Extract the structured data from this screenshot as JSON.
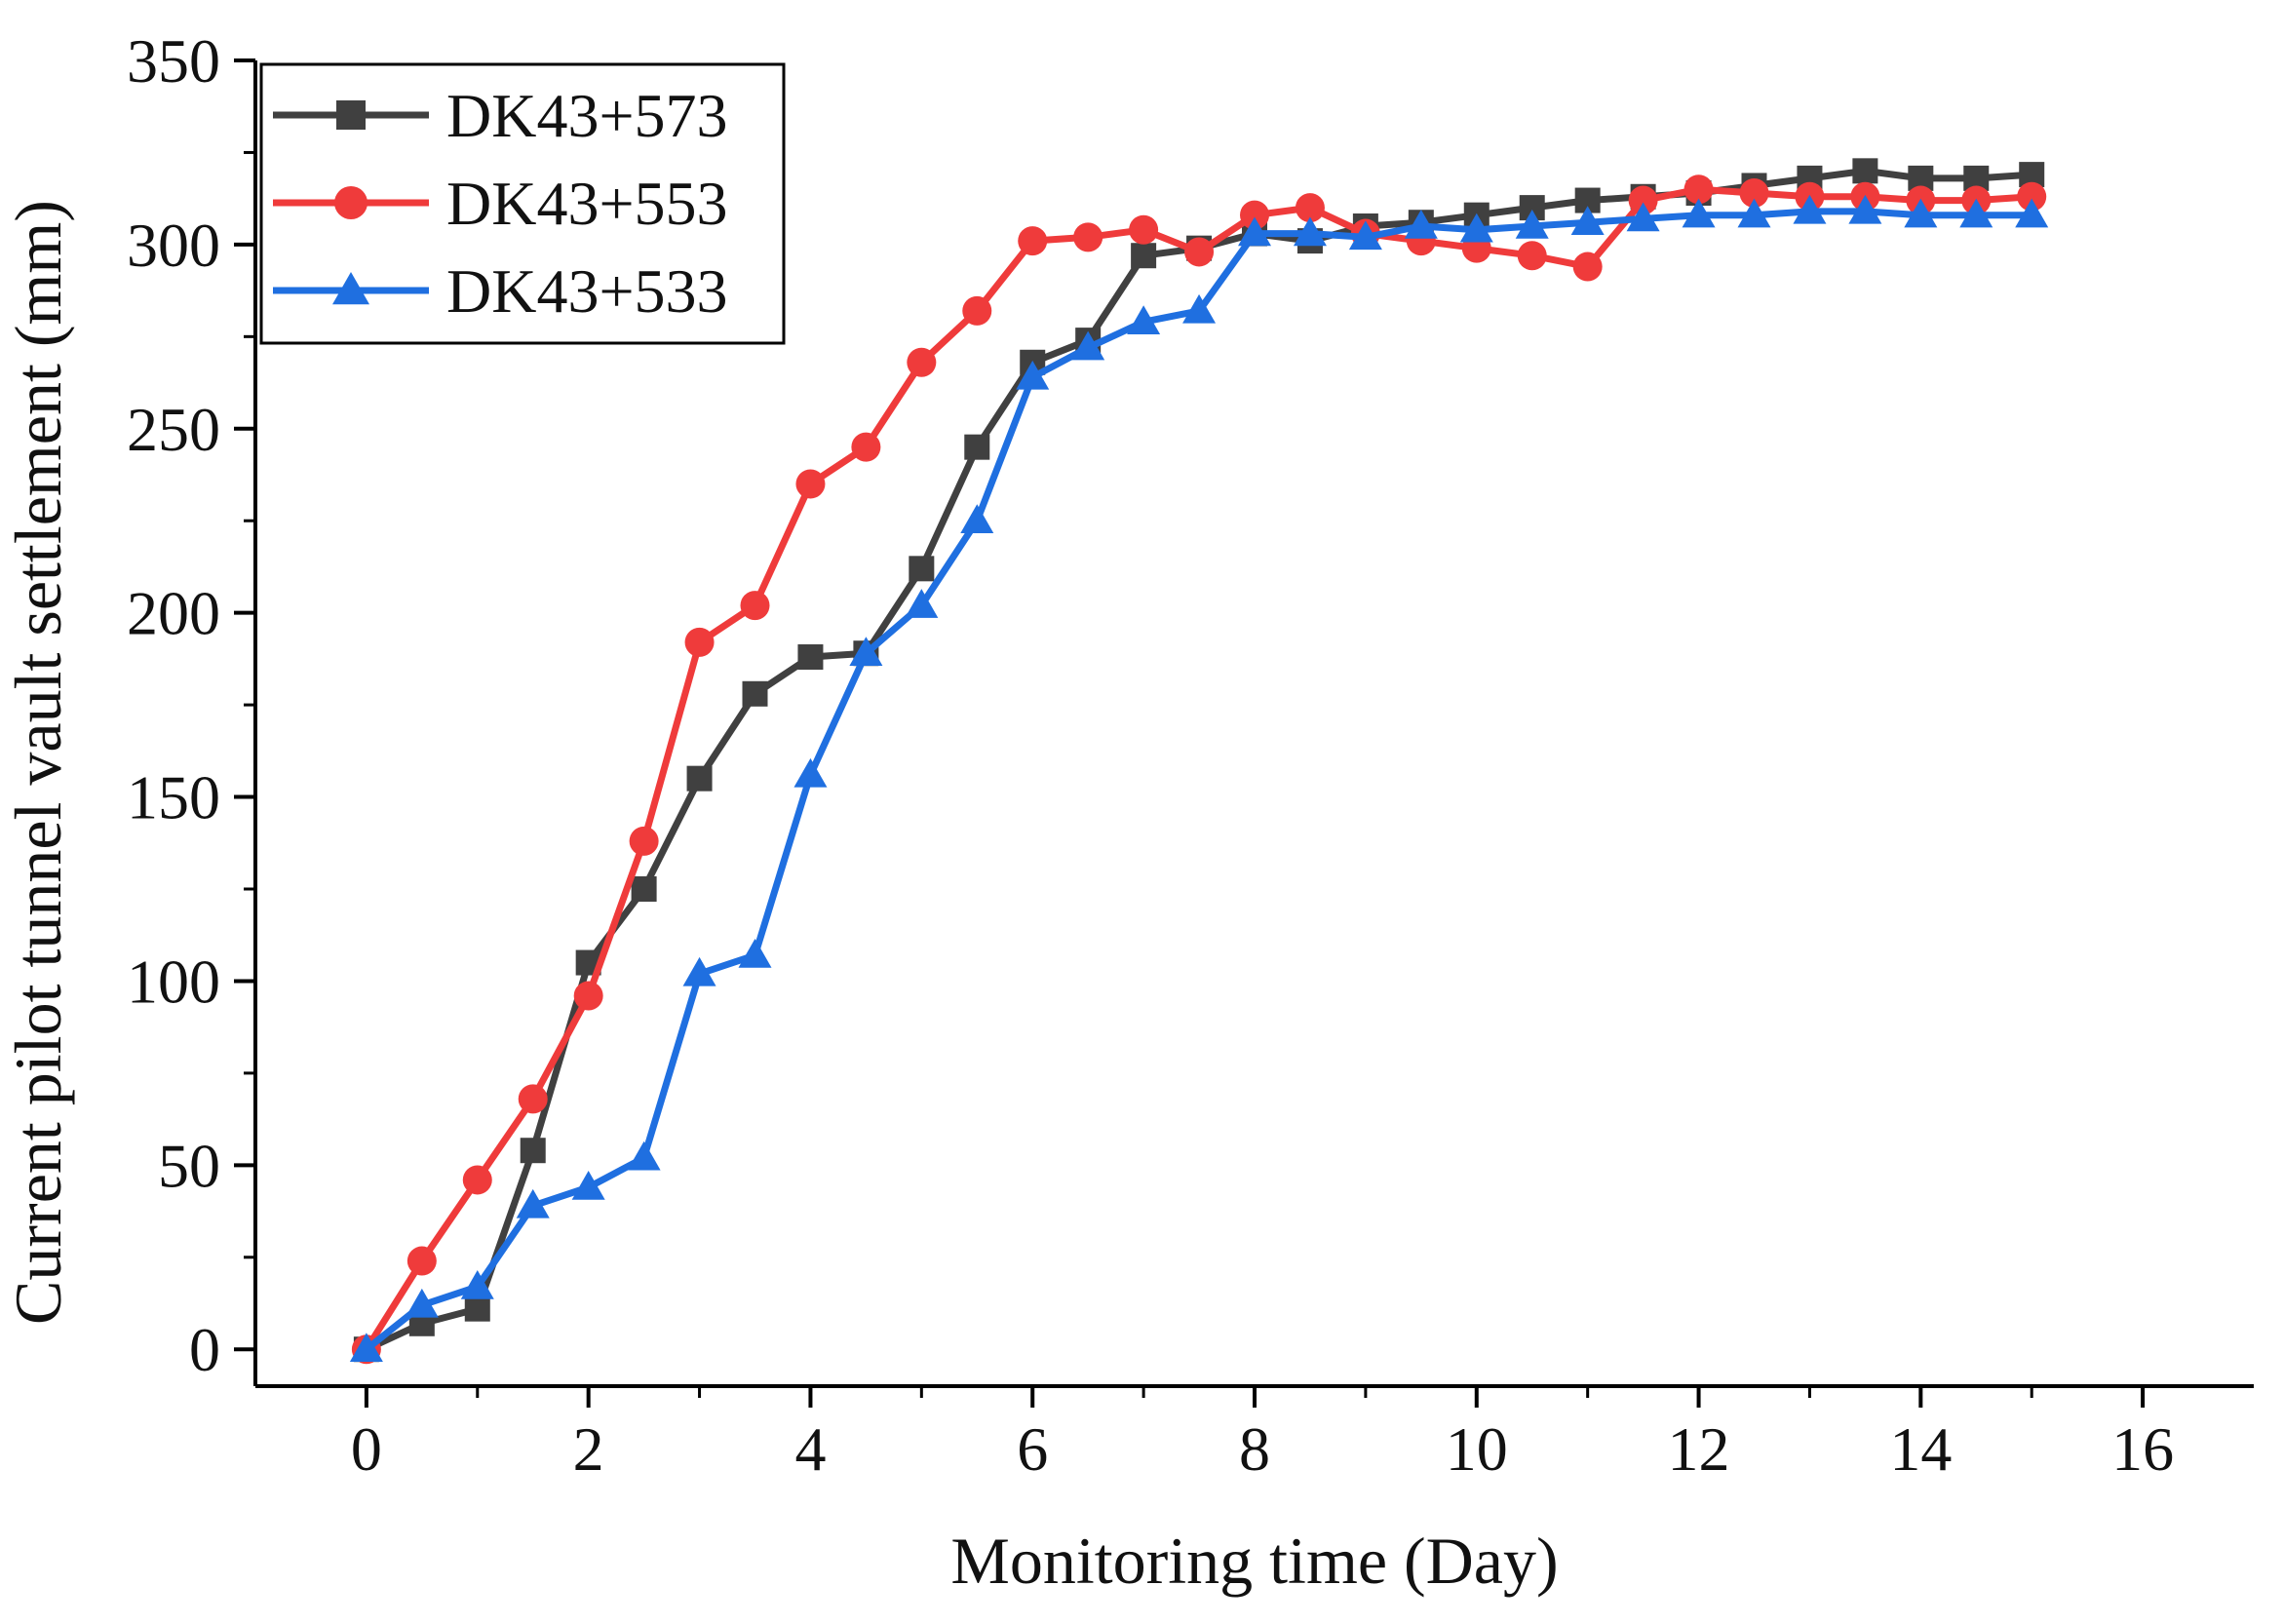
{
  "chart_data": {
    "type": "line",
    "title": "",
    "xlabel": "Monitoring time (Day)",
    "ylabel": "Current pilot tunnel vault settlement (mm)",
    "xlim": [
      -1,
      17
    ],
    "ylim": [
      -10,
      350
    ],
    "xticks": [
      0,
      2,
      4,
      6,
      8,
      10,
      12,
      14,
      16
    ],
    "yticks": [
      0,
      50,
      100,
      150,
      200,
      250,
      300,
      350
    ],
    "grid": false,
    "legend_position": "top-left",
    "x": [
      0,
      0.5,
      1,
      1.5,
      2,
      2.5,
      3,
      3.5,
      4,
      4.5,
      5,
      5.5,
      6,
      6.5,
      7,
      7.5,
      8,
      8.5,
      9,
      9.5,
      10,
      10.5,
      11,
      11.5,
      12,
      12.5,
      13,
      13.5,
      14,
      14.5,
      15
    ],
    "series": [
      {
        "name": "DK43+573",
        "color": "#404040",
        "marker": "square",
        "values": [
          0,
          7,
          11,
          54,
          105,
          125,
          155,
          178,
          188,
          189,
          212,
          245,
          268,
          274,
          297,
          299,
          303,
          301,
          305,
          306,
          308,
          310,
          312,
          313,
          314,
          316,
          318,
          320,
          318,
          318,
          319
        ]
      },
      {
        "name": "DK43+553",
        "color": "#ef3b3b",
        "marker": "circle",
        "values": [
          0,
          24,
          46,
          68,
          96,
          138,
          192,
          202,
          235,
          245,
          268,
          282,
          301,
          302,
          304,
          298,
          308,
          310,
          303,
          301,
          299,
          297,
          294,
          312,
          315,
          314,
          313,
          313,
          312,
          312,
          313
        ]
      },
      {
        "name": "DK43+533",
        "color": "#1f6fe0",
        "marker": "triangle",
        "values": [
          0,
          12,
          17,
          39,
          44,
          52,
          102,
          107,
          156,
          189,
          202,
          225,
          264,
          272,
          279,
          282,
          303,
          303,
          302,
          305,
          304,
          305,
          306,
          307,
          308,
          308,
          309,
          309,
          308,
          308,
          308
        ]
      }
    ]
  }
}
